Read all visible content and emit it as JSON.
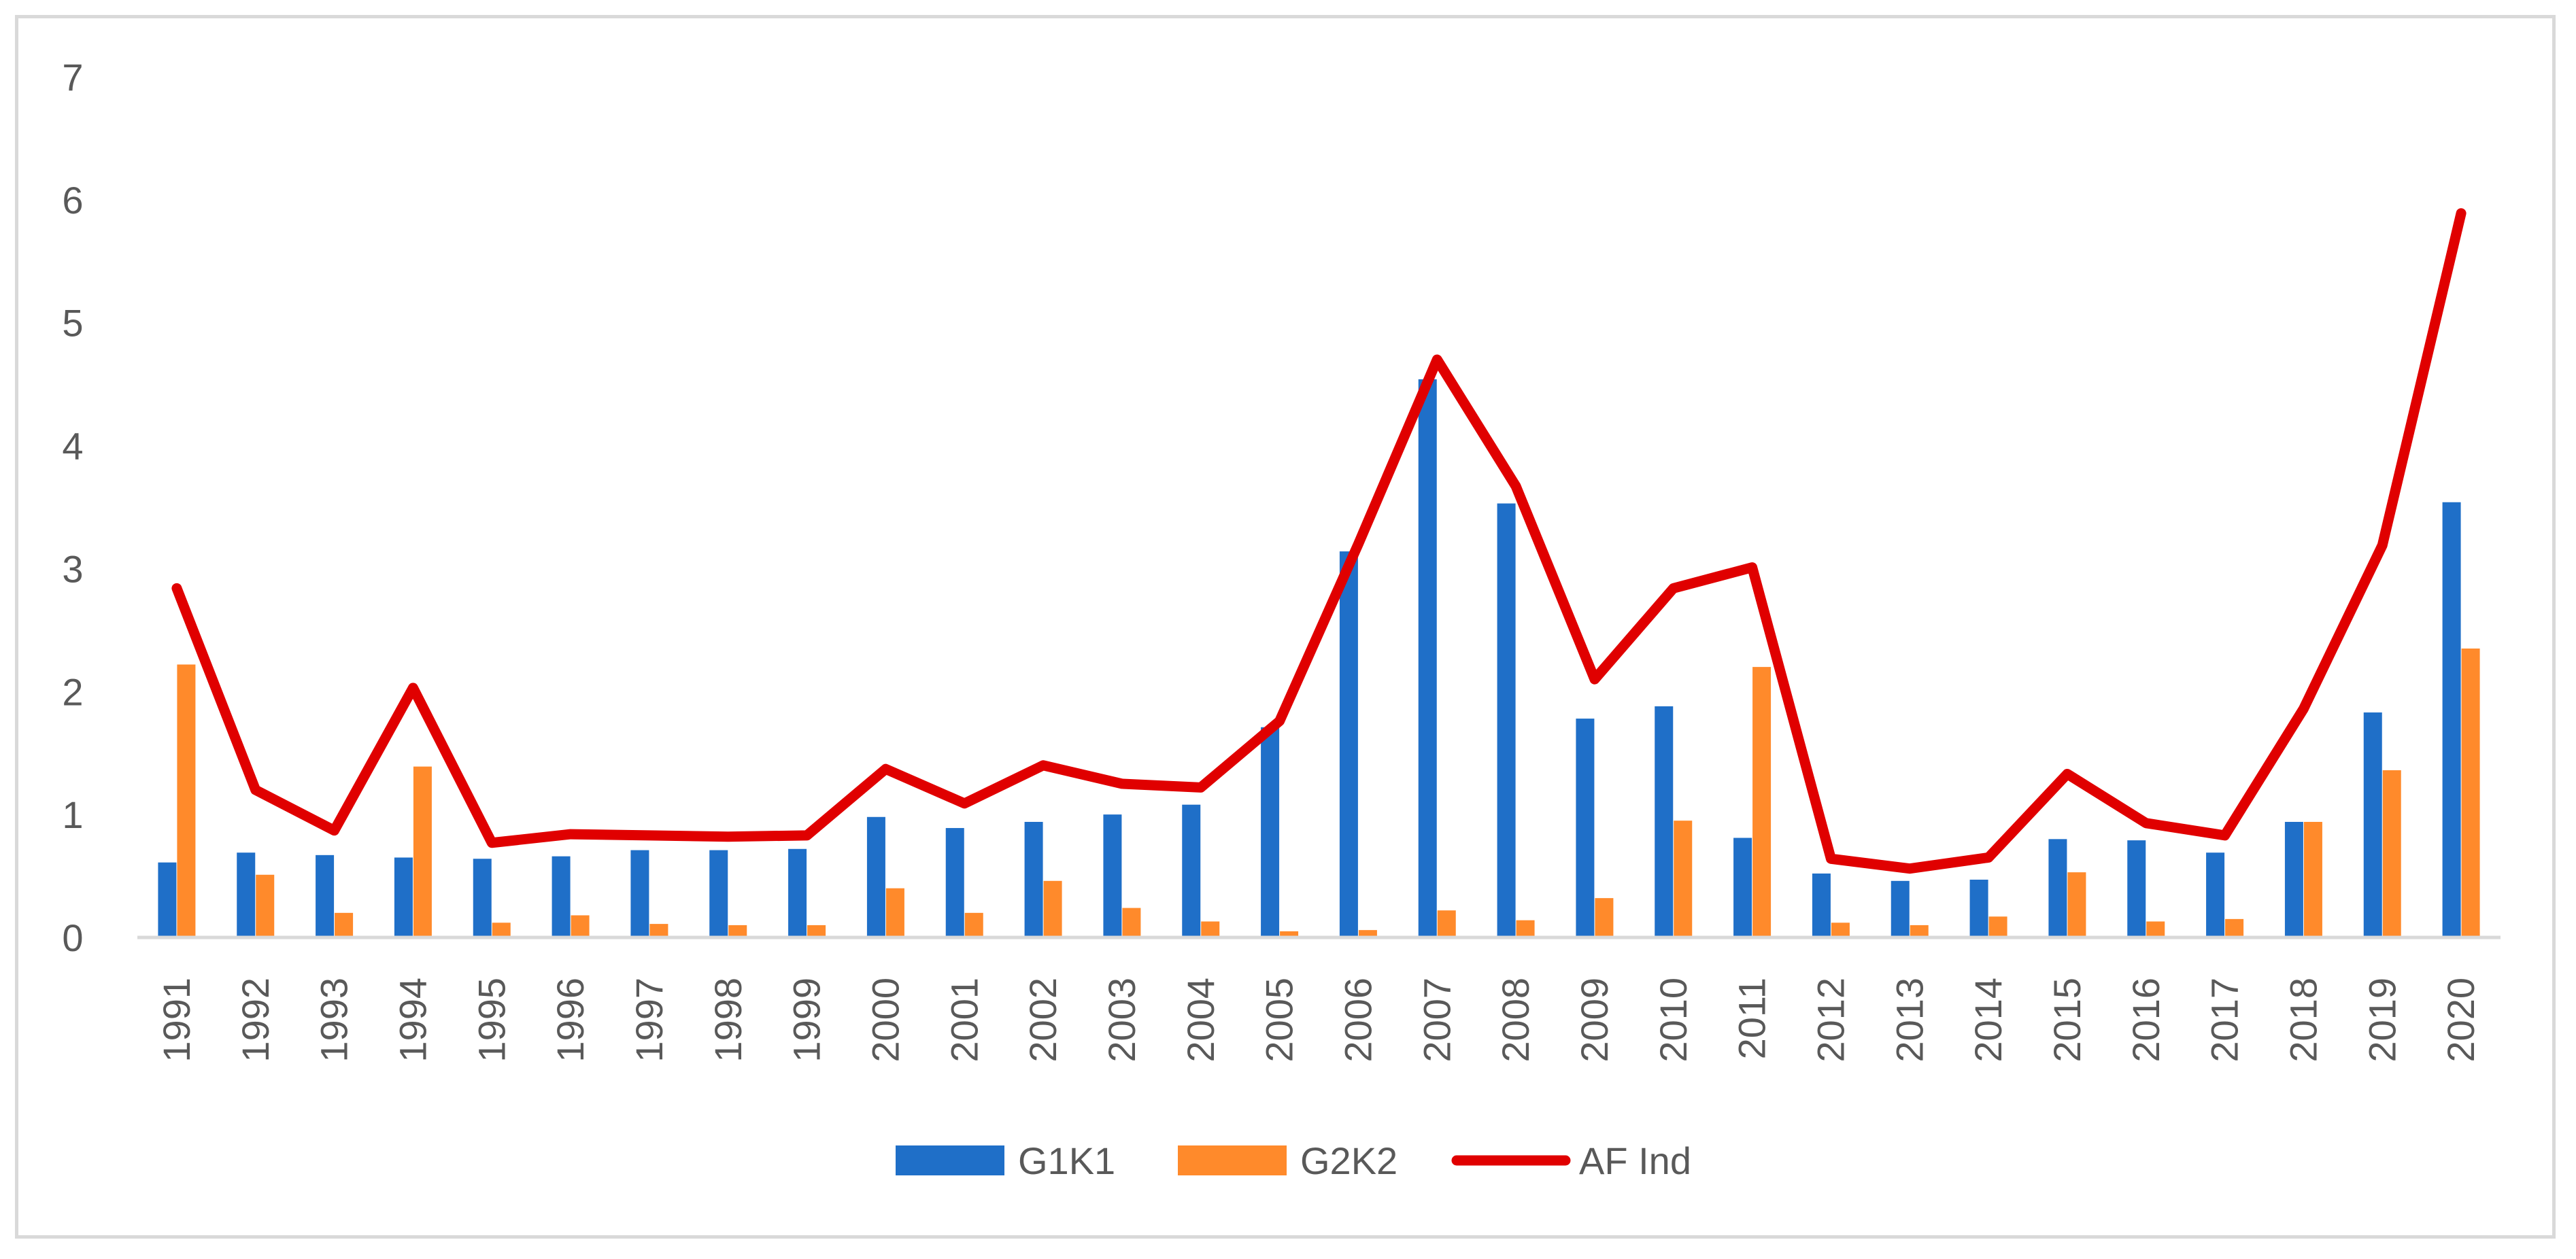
{
  "chart_data": {
    "type": "bar",
    "title": "",
    "xlabel": "",
    "ylabel": "",
    "ylim": [
      0,
      7
    ],
    "yticks": [
      0,
      1,
      2,
      3,
      4,
      5,
      6,
      7
    ],
    "grid": false,
    "legend_position": "bottom-center",
    "categories": [
      "1991",
      "1992",
      "1993",
      "1994",
      "1995",
      "1996",
      "1997",
      "1998",
      "1999",
      "2000",
      "2001",
      "2002",
      "2003",
      "2004",
      "2005",
      "2006",
      "2007",
      "2008",
      "2009",
      "2010",
      "2011",
      "2012",
      "2013",
      "2014",
      "2015",
      "2016",
      "2017",
      "2018",
      "2019",
      "2020"
    ],
    "series": [
      {
        "name": "G1K1",
        "kind": "bar",
        "color": "#1f6fc8",
        "values": [
          0.61,
          0.69,
          0.67,
          0.65,
          0.64,
          0.66,
          0.71,
          0.71,
          0.72,
          0.98,
          0.89,
          0.94,
          1.0,
          1.08,
          1.71,
          3.14,
          4.54,
          3.53,
          1.78,
          1.88,
          0.81,
          0.52,
          0.46,
          0.47,
          0.8,
          0.79,
          0.69,
          0.94,
          1.83,
          3.54
        ]
      },
      {
        "name": "G2K2",
        "kind": "bar",
        "color": "#ff8a2b",
        "values": [
          2.22,
          0.51,
          0.2,
          1.39,
          0.12,
          0.18,
          0.11,
          0.1,
          0.1,
          0.4,
          0.2,
          0.46,
          0.24,
          0.13,
          0.05,
          0.06,
          0.22,
          0.14,
          0.32,
          0.95,
          2.2,
          0.12,
          0.1,
          0.17,
          0.53,
          0.13,
          0.15,
          0.94,
          1.36,
          2.35
        ]
      },
      {
        "name": "AF Ind",
        "kind": "line",
        "color": "#e00000",
        "values": [
          2.84,
          1.2,
          0.87,
          2.03,
          0.77,
          0.84,
          0.83,
          0.82,
          0.83,
          1.37,
          1.09,
          1.4,
          1.25,
          1.22,
          1.76,
          3.2,
          4.7,
          3.67,
          2.1,
          2.84,
          3.01,
          0.64,
          0.56,
          0.65,
          1.33,
          0.93,
          0.83,
          1.86,
          3.19,
          5.89
        ]
      }
    ]
  }
}
